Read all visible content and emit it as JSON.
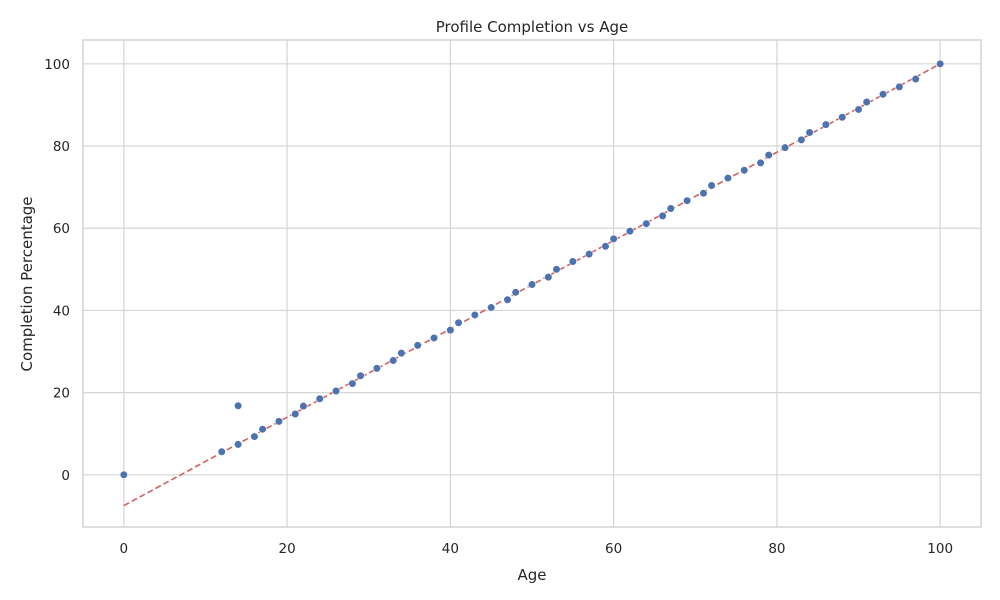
{
  "chart_data": {
    "type": "scatter",
    "title": "Profile Completion vs Age",
    "xlabel": "Age",
    "ylabel": "Completion Percentage",
    "xlim": [
      -5,
      105
    ],
    "ylim": [
      -12.7,
      105.8
    ],
    "xticks": [
      0,
      20,
      40,
      60,
      80,
      100
    ],
    "yticks": [
      0,
      20,
      40,
      60,
      80,
      100
    ],
    "grid": true,
    "colors": {
      "points": "#4c72b0",
      "trendline": "#d26060",
      "grid": "#d5d5d5",
      "frame": "#cfcfcf"
    },
    "points": {
      "x": [
        0,
        12,
        14,
        14,
        16,
        17,
        19,
        21,
        22,
        24,
        26,
        28,
        29,
        31,
        33,
        34,
        36,
        38,
        40,
        41,
        43,
        45,
        47,
        48,
        50,
        52,
        53,
        55,
        57,
        59,
        60,
        62,
        64,
        66,
        67,
        69,
        71,
        72,
        74,
        76,
        78,
        79,
        81,
        83,
        84,
        86,
        88,
        90,
        91,
        93,
        95,
        97,
        100
      ],
      "y": [
        0,
        5.6,
        16.8,
        7.4,
        9.3,
        11.1,
        13.0,
        14.8,
        16.7,
        18.5,
        20.4,
        22.2,
        24.1,
        25.9,
        27.8,
        29.6,
        31.5,
        33.3,
        35.2,
        37.0,
        38.9,
        40.7,
        42.6,
        44.4,
        46.3,
        48.1,
        50.0,
        51.9,
        53.7,
        55.6,
        57.4,
        59.3,
        61.1,
        63.0,
        64.8,
        66.7,
        68.5,
        70.4,
        72.2,
        74.1,
        75.9,
        77.8,
        79.6,
        81.5,
        83.3,
        85.2,
        87.0,
        88.9,
        90.7,
        92.6,
        94.4,
        96.3,
        100.0
      ]
    },
    "trendline": {
      "x": [
        0,
        100
      ],
      "y": [
        -7.5,
        100.0
      ]
    }
  }
}
